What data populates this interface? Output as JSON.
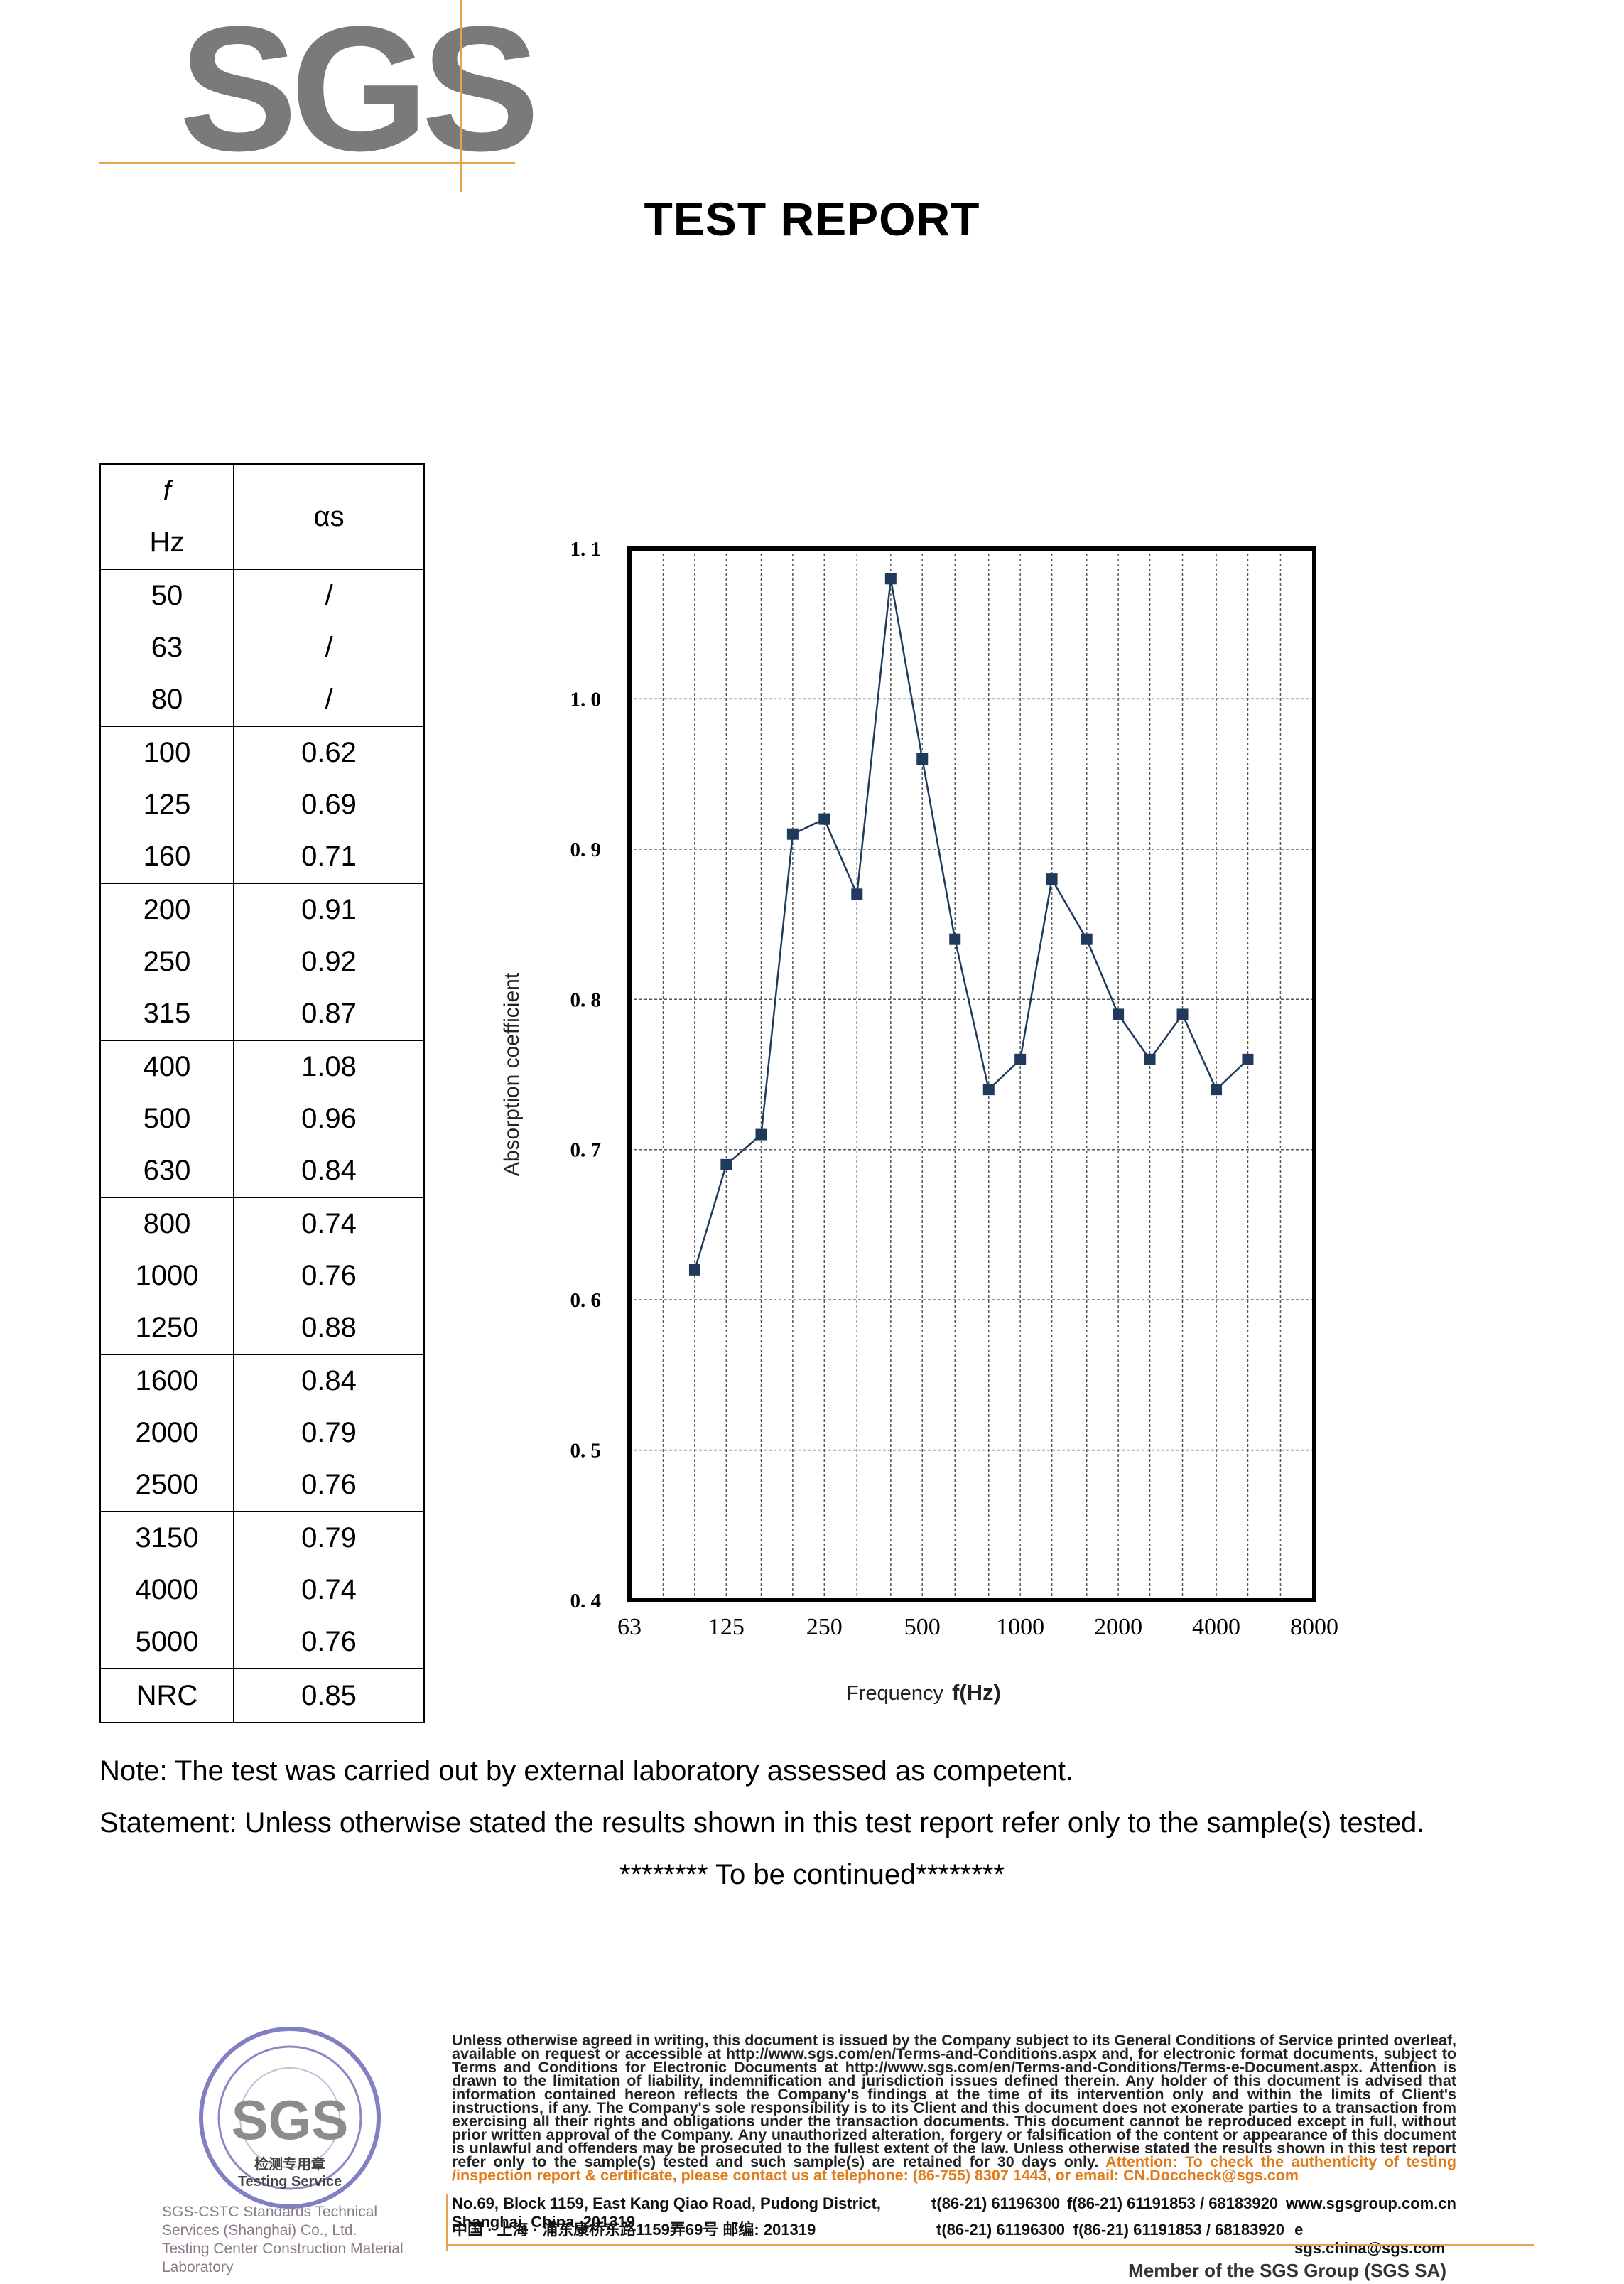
{
  "logo": {
    "text": "SGS"
  },
  "title": "TEST REPORT",
  "table": {
    "header_f_symbol": "f",
    "header_f_unit": "Hz",
    "header_alpha": "αs",
    "groups": [
      {
        "f": [
          "50",
          "63",
          "80"
        ],
        "a": [
          "/",
          "/",
          "/"
        ]
      },
      {
        "f": [
          "100",
          "125",
          "160"
        ],
        "a": [
          "0.62",
          "0.69",
          "0.71"
        ]
      },
      {
        "f": [
          "200",
          "250",
          "315"
        ],
        "a": [
          "0.91",
          "0.92",
          "0.87"
        ]
      },
      {
        "f": [
          "400",
          "500",
          "630"
        ],
        "a": [
          "1.08",
          "0.96",
          "0.84"
        ]
      },
      {
        "f": [
          "800",
          "1000",
          "1250"
        ],
        "a": [
          "0.74",
          "0.76",
          "0.88"
        ]
      },
      {
        "f": [
          "1600",
          "2000",
          "2500"
        ],
        "a": [
          "0.84",
          "0.79",
          "0.76"
        ]
      },
      {
        "f": [
          "3150",
          "4000",
          "5000"
        ],
        "a": [
          "0.79",
          "0.74",
          "0.76"
        ]
      }
    ],
    "nrc_label": "NRC",
    "nrc_value": "0.85"
  },
  "chart_data": {
    "type": "line",
    "title": "",
    "xlabel": "Frequency",
    "xlabel_unit": "f(Hz)",
    "ylabel": "Absorption coefficient",
    "x_scale": "log (1/3-octave bands)",
    "x_ticks": [
      "63",
      "125",
      "250",
      "500",
      "1000",
      "2000",
      "4000",
      "8000"
    ],
    "y_ticks": [
      "0.4",
      "0.5",
      "0.6",
      "0.7",
      "0.8",
      "0.9",
      "1.0",
      "1.1"
    ],
    "ylim": [
      0.4,
      1.1
    ],
    "series": [
      {
        "name": "αs",
        "x": [
          100,
          125,
          160,
          200,
          250,
          315,
          400,
          500,
          630,
          800,
          1000,
          1250,
          1600,
          2000,
          2500,
          3150,
          4000,
          5000
        ],
        "values": [
          0.62,
          0.69,
          0.71,
          0.91,
          0.92,
          0.87,
          1.08,
          0.96,
          0.84,
          0.74,
          0.76,
          0.88,
          0.84,
          0.79,
          0.76,
          0.79,
          0.74,
          0.76
        ]
      }
    ],
    "grid": true,
    "line_color": "#1f3a5c"
  },
  "note": "Note: The test was carried out by external laboratory assessed as competent.",
  "statement": "Statement: Unless otherwise stated the results shown in this test report refer only to the sample(s) tested.",
  "continued": "******** To be continued********",
  "stamp": {
    "center_text": "SGS",
    "label_cn": "检测专用章",
    "label_en": "Testing Service",
    "caption_1": "SGS-CSTC Standards Technical Services (Shanghai) Co., Ltd.",
    "caption_2": "Testing Center Construction Material Laboratory"
  },
  "footer": {
    "legal": "Unless otherwise agreed in writing, this document is issued by the Company subject to its General Conditions of Service printed overleaf, available on request or accessible at http://www.sgs.com/en/Terms-and-Conditions.aspx and, for electronic format documents, subject to Terms and Conditions for Electronic Documents at http://www.sgs.com/en/Terms-and-Conditions/Terms-e-Document.aspx. Attention is drawn to the limitation of liability, indemnification and jurisdiction issues defined therein. Any holder of this document is advised that information contained hereon reflects the Company's findings at the time of its intervention only and within the limits of Client's instructions, if any. The Company's sole responsibility is to its Client and this document does not exonerate parties to a transaction from exercising all their rights and obligations under the transaction documents. This document cannot be reproduced except in full, without prior written approval of the Company. Any unauthorized alteration, forgery or falsification of the content or appearance of this document is unlawful and offenders may be prosecuted to the fullest extent of the law. Unless otherwise stated the results shown in this test report refer only to the sample(s) tested and such sample(s) are retained for 30 days only.",
    "attention": "Attention: To check the authenticity of testing /inspection report & certificate, please contact us at telephone: (86-755) 8307 1443, or email: CN.Doccheck@sgs.com",
    "address_en": "No.69, Block 1159, East Kang Qiao Road, Pudong District, Shanghai, China. 201319",
    "address_cn": "中国 · 上海 · 浦东康桥东路1159弄69号  邮编: 201319",
    "tel": "t(86-21) 61196300",
    "fax": "f(86-21) 61191853 / 68183920",
    "web": "www.sgsgroup.com.cn",
    "email": "e  sgs.china@sgs.com",
    "member": "Member of the SGS Group (SGS SA)"
  }
}
